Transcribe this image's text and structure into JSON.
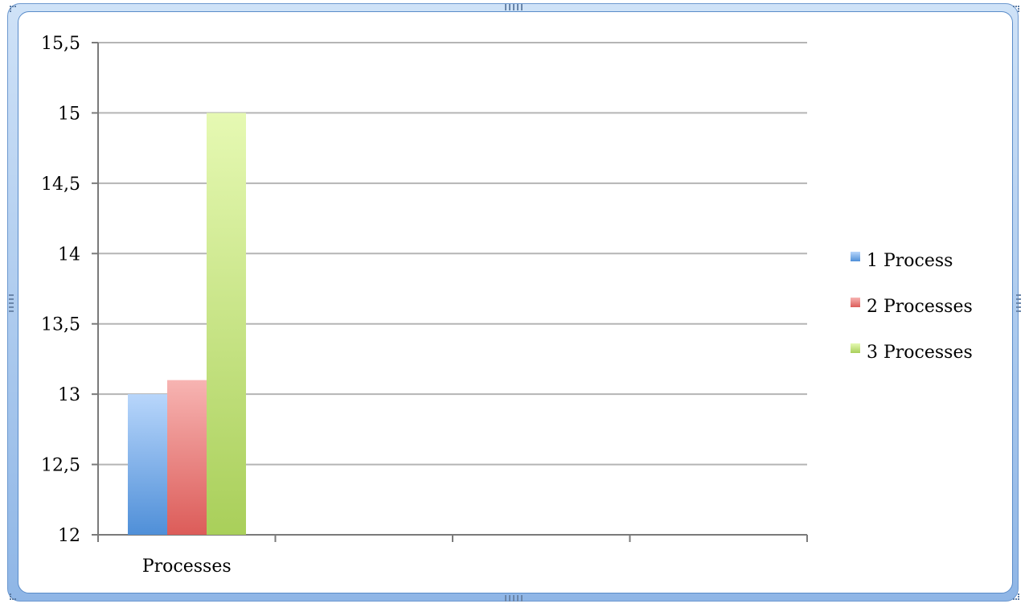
{
  "chart_data": {
    "type": "bar",
    "categories": [
      "Processes"
    ],
    "series": [
      {
        "name": "1 Process",
        "values": [
          13.0
        ],
        "color": "#6aa3e6"
      },
      {
        "name": "2 Processes",
        "values": [
          13.1
        ],
        "color": "#ec7a78"
      },
      {
        "name": "3 Processes",
        "values": [
          15.0
        ],
        "color": "#c4e47a"
      }
    ],
    "ylim": [
      12,
      15.5
    ],
    "yticks": [
      {
        "value": 12,
        "label": "12"
      },
      {
        "value": 12.5,
        "label": "12,5"
      },
      {
        "value": 13,
        "label": "13"
      },
      {
        "value": 13.5,
        "label": "13,5"
      },
      {
        "value": 14,
        "label": "14"
      },
      {
        "value": 14.5,
        "label": "14,5"
      },
      {
        "value": 15,
        "label": "15"
      },
      {
        "value": 15.5,
        "label": "15,5"
      }
    ],
    "x_category_slots": 4,
    "grid": true,
    "legend_position": "right",
    "title": "",
    "xlabel": "",
    "ylabel": ""
  }
}
